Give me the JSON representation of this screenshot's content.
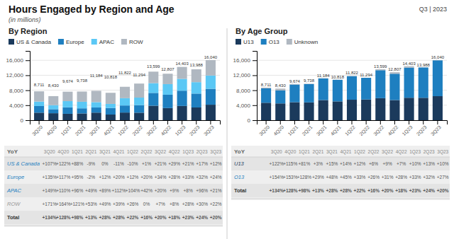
{
  "title": "Hours Engaged by Region and Age",
  "subtitle": "(in millions)",
  "annotations": [
    "Q3 | 2023"
  ],
  "chart_data": [
    {
      "type": "bar",
      "title": "By Region",
      "stacked": true,
      "grid": true,
      "legend": "upper left",
      "categories": [
        "3Q20",
        "4Q20",
        "1Q21",
        "2Q21",
        "3Q21",
        "4Q21",
        "1Q22",
        "2Q22",
        "3Q22",
        "4Q22",
        "1Q23",
        "2Q23",
        "3Q23"
      ],
      "series": [
        {
          "name": "US & Canada",
          "color": "#1b3a5c",
          "values": [
            2013,
            1866,
            1708,
            1811,
            2028,
            1508,
            2048,
            2008,
            3871,
            3240,
            3808,
            3400,
            4138
          ]
        },
        {
          "name": "Europe",
          "color": "#1e7fc0",
          "values": [
            1768,
            1074,
            1728,
            1358,
            1363,
            1758,
            1883,
            2014,
            3420,
            3568,
            4079,
            3708,
            4252
          ]
        },
        {
          "name": "APAC",
          "color": "#5bc8f5",
          "values": [
            1200,
            1081,
            1654,
            1756,
            1430,
            1088,
            1951,
            2014,
            2604,
            2828,
            3163,
            3053,
            3543
          ]
        },
        {
          "name": "ROW",
          "color": "#b0b8c1",
          "values": [
            2730,
            2409,
            2528,
            2734,
            3025,
            2963,
            3041,
            3748,
            3071,
            2774,
            3174,
            3425,
            4107
          ]
        }
      ],
      "totals": [
        8711,
        8430,
        9674,
        9738,
        11184,
        10818,
        11822,
        11294,
        13599,
        12807,
        14403,
        13988,
        16040
      ],
      "total_labels": [
        "8,711",
        "8,430",
        "9,674",
        "9,738",
        "11,184",
        "10,818",
        "11,822",
        "11,294",
        "13,599",
        "12,807",
        "14,403",
        "13,988",
        "16,040"
      ],
      "ylim": [
        0,
        18500
      ],
      "yticks": [
        0,
        {
          "value": 4000,
          "label": "4,000"
        },
        {
          "value": 8000,
          "label": "8,000"
        },
        {
          "value": 12000,
          "label": "12,000"
        },
        {
          "value": 16000,
          "label": "16,000"
        }
      ]
    },
    {
      "type": "bar",
      "title": "By Age Group",
      "stacked": true,
      "grid": true,
      "legend": "upper left",
      "categories": [
        "3Q20",
        "4Q20",
        "1Q21",
        "2Q21",
        "3Q21",
        "4Q21",
        "1Q22",
        "2Q22",
        "3Q22",
        "4Q22",
        "1Q23",
        "2Q23",
        "3Q23"
      ],
      "series": [
        {
          "name": "U13",
          "color": "#1b3a5c",
          "values": [
            4663,
            4483,
            4808,
            4758,
            5379,
            5028,
            5469,
            5528,
            5878,
            5381,
            5994,
            5983,
            6415
          ]
        },
        {
          "name": "O13",
          "color": "#1e7fc0",
          "values": [
            3847,
            3447,
            4717,
            4888,
            5776,
            5758,
            6294,
            5793,
            7470,
            7023,
            8053,
            8101,
            9580
          ]
        },
        {
          "name": "Unknown",
          "color": "#b0b8c1",
          "values": [
            201,
            500,
            149,
            92,
            29,
            32,
            59,
            0,
            251,
            403,
            356,
            0,
            45
          ]
        }
      ],
      "totals": [
        8711,
        8430,
        9674,
        9738,
        11184,
        10818,
        11822,
        11294,
        13599,
        12807,
        14403,
        13988,
        16040
      ],
      "total_labels": [
        "8,711",
        "8,430",
        "9,674",
        "9,738",
        "11,184",
        "10,818",
        "11,822",
        "11,294",
        "13,599",
        "12,807",
        "14,403",
        "13,988",
        "16,040"
      ],
      "ylim": [
        0,
        18500
      ],
      "yticks": [
        0,
        {
          "value": 4000,
          "label": "4,000"
        },
        {
          "value": 8000,
          "label": "8,000"
        },
        {
          "value": 12000,
          "label": "12,000"
        },
        {
          "value": 16000,
          "label": "16,000"
        }
      ]
    },
    {
      "type": "table",
      "title": "YoY",
      "categories": [
        "3Q20",
        "4Q20",
        "1Q21",
        "2Q21",
        "3Q21",
        "4Q21",
        "1Q22",
        "2Q22",
        "3Q22",
        "4Q22",
        "1Q23",
        "2Q23",
        "3Q23"
      ],
      "series": [
        {
          "name": "US & Canada",
          "color": "#1e7fc0",
          "values": [
            107,
            122,
            88,
            -9,
            0,
            -11,
            -10,
            1,
            21,
            29,
            21,
            17,
            12
          ],
          "value_labels": [
            "+107%",
            "+122%",
            "+88%",
            "-9%",
            "0%",
            "-11%",
            "-10%",
            "+1%",
            "+21%",
            "+29%",
            "+21%",
            "+17%",
            "+12%"
          ]
        },
        {
          "name": "Europe",
          "color": "#1e7fc0",
          "values": [
            135,
            117,
            95,
            -2,
            12,
            20,
            12,
            20,
            34,
            28,
            33,
            32,
            24
          ],
          "value_labels": [
            "+135%",
            "+117%",
            "+95%",
            "-2%",
            "+12%",
            "+20%",
            "+12%",
            "+20%",
            "+34%",
            "+28%",
            "+33%",
            "+32%",
            "+24%"
          ]
        },
        {
          "name": "APAC",
          "color": "#1e7fc0",
          "values": [
            149,
            110,
            96,
            49,
            89,
            112,
            104,
            42,
            20,
            9,
            8,
            96,
            21
          ],
          "value_labels": [
            "+149%",
            "+110%",
            "+96%",
            "+49%",
            "+89%",
            "+112%",
            "+104%",
            "+42%",
            "+20%",
            "+9%",
            "+8%",
            "+96%",
            "+21%"
          ]
        },
        {
          "name": "ROW",
          "color": "#999999",
          "values": [
            171,
            164,
            121,
            53,
            49,
            39,
            26,
            0,
            7,
            8,
            28,
            30,
            22
          ],
          "value_labels": [
            "+171%",
            "+164%",
            "+121%",
            "+53%",
            "+49%",
            "+39%",
            "+26%",
            "0%",
            "+7%",
            "+8%",
            "+28%",
            "+30%",
            "+22%"
          ]
        },
        {
          "name": "Total",
          "color": "#333333",
          "type": "total",
          "values": [
            134,
            128,
            98,
            13,
            28,
            28,
            22,
            16,
            20,
            18,
            23,
            24,
            20
          ],
          "value_labels": [
            "+134%",
            "+128%",
            "+98%",
            "+13%",
            "+28%",
            "+28%",
            "+22%",
            "+16%",
            "+20%",
            "+18%",
            "+23%",
            "+24%",
            "+20%"
          ]
        }
      ]
    },
    {
      "type": "table",
      "title": "YoY",
      "categories": [
        "3Q20",
        "4Q20",
        "1Q21",
        "2Q21",
        "3Q21",
        "4Q21",
        "1Q22",
        "2Q22",
        "3Q22",
        "4Q22",
        "1Q23",
        "2Q23",
        "3Q23"
      ],
      "series": [
        {
          "name": "U13",
          "color": "#1b3a5c",
          "values": [
            122,
            115,
            81,
            3,
            15,
            14,
            12,
            6,
            9,
            7,
            10,
            13,
            10
          ],
          "value_labels": [
            "+122%",
            "+115%",
            "+81%",
            "+3%",
            "+15%",
            "+14%",
            "+12%",
            "+6%",
            "+9%",
            "+7%",
            "+10%",
            "+13%",
            "+10%"
          ]
        },
        {
          "name": "O13",
          "color": "#1e7fc0",
          "values": [
            154,
            153,
            128,
            29,
            48,
            45,
            33,
            26,
            31,
            28,
            33,
            32,
            27
          ],
          "value_labels": [
            "+154%",
            "+153%",
            "+128%",
            "+29%",
            "+48%",
            "+45%",
            "+33%",
            "+26%",
            "+31%",
            "+28%",
            "+33%",
            "+32%",
            "+27%"
          ]
        },
        {
          "name": "Total",
          "color": "#333333",
          "type": "total",
          "values": [
            134,
            128,
            98,
            13,
            28,
            28,
            22,
            16,
            20,
            18,
            23,
            24,
            20
          ],
          "value_labels": [
            "+134%",
            "+128%",
            "+98%",
            "+13%",
            "+28%",
            "+28%",
            "+22%",
            "+16%",
            "+20%",
            "+18%",
            "+23%",
            "+24%",
            "+20%"
          ]
        }
      ]
    }
  ]
}
